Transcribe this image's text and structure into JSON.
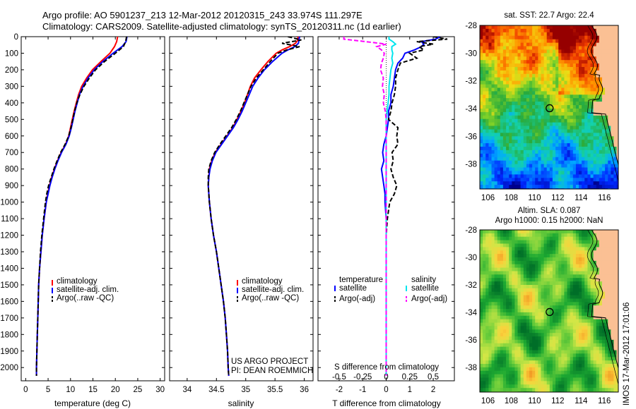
{
  "header": {
    "line1": "Argo profile: AO 5901237_213 12-Mar-2012 20120315_243 33.974S 111.297E",
    "line2": "Climatology: CARS2009. Satellite-adjusted climatology: synTS_20120311.nc (1d earlier)"
  },
  "colors": {
    "climatology": "#ff0000",
    "satellite": "#0000ff",
    "argo": "#000000",
    "sat_salinity": "#00e5ee",
    "argo_salinity_adj": "#ff00ff"
  },
  "chart_data": [
    {
      "type": "line",
      "xlabel": "temperature (deg C)",
      "ylabel": "",
      "xlim": [
        -1,
        31
      ],
      "ylim": [
        2080,
        0
      ],
      "xticks": [
        "0",
        "5",
        "10",
        "15",
        "20",
        "25",
        "30"
      ],
      "yticks": [
        "0",
        "100",
        "200",
        "300",
        "400",
        "500",
        "600",
        "700",
        "800",
        "900",
        "1000",
        "1100",
        "1200",
        "1300",
        "1400",
        "1500",
        "1600",
        "1700",
        "1800",
        "1900",
        "2000"
      ],
      "legend": [
        "climatology",
        "satellite-adj. clim.",
        "Argo(..raw -QC)"
      ],
      "legend_position": "bottom",
      "depth": [
        0,
        30,
        60,
        100,
        150,
        200,
        250,
        300,
        350,
        400,
        450,
        500,
        550,
        600,
        650,
        700,
        750,
        800,
        850,
        900,
        950,
        1000,
        1100,
        1200,
        1300,
        1400,
        1500,
        1600,
        1700,
        1800,
        1900,
        2000,
        2050
      ],
      "series": [
        {
          "name": "climatology",
          "values": [
            20.5,
            20.3,
            19.8,
            18.8,
            16.8,
            14.9,
            13.6,
            12.5,
            11.8,
            11.3,
            10.8,
            10.4,
            10.0,
            9.6,
            8.9,
            7.9,
            7.1,
            6.4,
            5.8,
            5.3,
            4.9,
            4.6,
            4.1,
            3.7,
            3.4,
            3.1,
            2.9,
            2.8,
            2.7,
            2.6,
            2.5,
            2.4,
            2.4
          ]
        },
        {
          "name": "satellite-adj. clim.",
          "values": [
            22.6,
            22.4,
            21.5,
            19.5,
            17.2,
            15.3,
            13.9,
            12.8,
            12.0,
            11.5,
            11.0,
            10.6,
            10.2,
            9.7,
            9.0,
            8.0,
            7.2,
            6.5,
            5.9,
            5.4,
            5.0,
            4.6,
            4.1,
            3.7,
            3.4,
            3.1,
            2.9,
            2.8,
            2.7,
            2.6,
            2.5,
            2.4,
            2.4
          ]
        },
        {
          "name": "Argo(..raw -QC)",
          "values": [
            22.5,
            22.3,
            21.8,
            20.0,
            17.6,
            15.6,
            14.2,
            13.0,
            12.1,
            11.4,
            10.9,
            10.5,
            10.1,
            9.6,
            8.8,
            7.8,
            7.0,
            6.3,
            5.7,
            5.1,
            4.7,
            4.4,
            4.0,
            3.6,
            3.3,
            3.1,
            2.9,
            2.8,
            2.7,
            2.6,
            2.5,
            2.4,
            2.4
          ]
        }
      ]
    },
    {
      "type": "line",
      "xlabel": "salinity",
      "xlim": [
        33.7,
        36.15
      ],
      "ylim": [
        2080,
        0
      ],
      "xticks": [
        "34",
        "34.5",
        "35",
        "35.5",
        "36"
      ],
      "legend": [
        "climatology",
        "satellite-adj. clim.",
        "Argo(..raw -QC)"
      ],
      "legend_position": "bottom",
      "annotation": [
        "US ARGO PROJECT",
        "PI: DEAN ROEMMICH"
      ],
      "depth": [
        0,
        20,
        40,
        60,
        80,
        100,
        150,
        200,
        250,
        300,
        350,
        400,
        450,
        500,
        550,
        600,
        650,
        700,
        750,
        800,
        850,
        900,
        950,
        1000,
        1100,
        1200,
        1300,
        1400,
        1500,
        1600,
        1700,
        1800,
        1900,
        2000,
        2050
      ],
      "series": [
        {
          "name": "climatology",
          "values": [
            35.89,
            35.89,
            35.85,
            35.75,
            35.62,
            35.52,
            35.38,
            35.26,
            35.15,
            35.08,
            35.03,
            34.98,
            34.92,
            34.85,
            34.78,
            34.68,
            34.58,
            34.48,
            34.42,
            34.38,
            34.37,
            34.36,
            34.37,
            34.38,
            34.41,
            34.45,
            34.5,
            34.54,
            34.58,
            34.62,
            34.65,
            34.67,
            34.69,
            34.7,
            34.71
          ]
        },
        {
          "name": "satellite-adj. clim.",
          "values": [
            35.92,
            35.91,
            35.9,
            35.84,
            35.72,
            35.62,
            35.46,
            35.32,
            35.21,
            35.12,
            35.06,
            35.0,
            34.94,
            34.87,
            34.79,
            34.69,
            34.59,
            34.49,
            34.43,
            34.39,
            34.37,
            34.36,
            34.37,
            34.38,
            34.41,
            34.45,
            34.5,
            34.54,
            34.58,
            34.62,
            34.65,
            34.67,
            34.69,
            34.7,
            34.71
          ]
        },
        {
          "name": "Argo(..raw -QC)",
          "values": [
            35.72,
            35.95,
            35.62,
            35.92,
            35.7,
            35.55,
            35.42,
            35.3,
            35.18,
            35.09,
            35.03,
            34.97,
            34.91,
            34.84,
            34.76,
            34.66,
            34.56,
            34.47,
            34.41,
            34.37,
            34.36,
            34.36,
            34.37,
            34.38,
            34.41,
            34.45,
            34.5,
            34.54,
            34.58,
            34.62,
            34.65,
            34.67,
            34.69,
            34.7,
            34.71
          ]
        }
      ]
    },
    {
      "type": "line",
      "xlabel": "T difference from climatology",
      "xlabel_top": "S difference from climatology",
      "xlim": [
        -2.9,
        2.9
      ],
      "ylim": [
        2080,
        0
      ],
      "xticks": [
        "-2",
        "-1",
        "0",
        "1",
        "2"
      ],
      "xticks_top": [
        "-0.5",
        "-0.25",
        "0",
        "0.25",
        "0.5"
      ],
      "legend": [
        "temperature",
        "satellite",
        "Argo(-adj)",
        "salinity",
        "satellite",
        "Argo(-adj)"
      ],
      "legend_position": "bottom",
      "depth": [
        0,
        15,
        30,
        45,
        60,
        80,
        100,
        130,
        160,
        200,
        250,
        300,
        350,
        400,
        450,
        500,
        550,
        600,
        650,
        700,
        750,
        800,
        850,
        900,
        950,
        1000,
        1100,
        1200,
        1400,
        1600,
        1800,
        2000,
        2050
      ],
      "series": [
        {
          "name": "temperature satellite",
          "values": [
            2.3,
            2.1,
            1.5,
            1.6,
            1.5,
            1.2,
            0.8,
            0.7,
            0.5,
            0.4,
            0.35,
            0.3,
            0.2,
            0.2,
            0.1,
            0.1,
            0.05,
            0.0,
            -0.1,
            -0.15,
            -0.1,
            -0.2,
            -0.15,
            -0.1,
            -0.05,
            -0.05,
            0.0,
            0.0,
            0.0,
            0.0,
            0.0,
            0.0,
            0.0
          ]
        },
        {
          "name": "temperature Argo(-adj)",
          "values": [
            2.0,
            2.6,
            1.3,
            2.0,
            1.4,
            1.6,
            1.0,
            1.3,
            0.6,
            0.5,
            0.4,
            0.4,
            0.35,
            0.25,
            0.2,
            0.1,
            0.5,
            0.45,
            0.5,
            0.25,
            0.3,
            0.2,
            0.3,
            0.45,
            0.35,
            0.15,
            0.05,
            0.0,
            0.0,
            0.0,
            0.0,
            0.0,
            0.0
          ]
        },
        {
          "name": "salinity satellite",
          "values": [
            0.03,
            0.03,
            0.07,
            0.1,
            0.06,
            0.06,
            0.07,
            0.06,
            0.07,
            0.05,
            0.04,
            0.03,
            0.03,
            0.02,
            0.01,
            0.0,
            0.0,
            0.0,
            0.0,
            0.0,
            0.0,
            0.0,
            0.0,
            0.0,
            0.0,
            0.0,
            0.0,
            0.0,
            0.0,
            0.0,
            0.0,
            0.0,
            0.0
          ]
        },
        {
          "name": "salinity Argo(-adj)",
          "values": [
            -0.45,
            -0.45,
            -0.22,
            0.0,
            -0.1,
            -0.05,
            -0.02,
            -0.03,
            -0.05,
            -0.06,
            -0.03,
            -0.04,
            -0.02,
            -0.03,
            -0.01,
            0.0,
            0.0,
            0.0,
            0.0,
            0.0,
            0.0,
            0.0,
            0.0,
            0.0,
            0.0,
            0.0,
            0.0,
            0.0,
            0.0,
            0.0,
            0.0,
            0.0,
            0.0
          ]
        }
      ]
    },
    {
      "type": "heatmap",
      "title": "sat. SST: 22.7  Argo: 22.4",
      "xlim": [
        105.3,
        117.2
      ],
      "ylim": [
        -39.8,
        -28.0
      ],
      "xticks": [
        "106",
        "108",
        "110",
        "112",
        "114",
        "116"
      ],
      "yticks": [
        "-28",
        "-30",
        "-32",
        "-34",
        "-36",
        "-38"
      ],
      "argo_position": [
        111.297,
        -33.974
      ]
    },
    {
      "type": "heatmap",
      "title": "Altim. SLA: 0.087",
      "subtitle": "Argo h1000: 0.15 h2000: NaN",
      "xlim": [
        105.3,
        117.2
      ],
      "ylim": [
        -39.8,
        -28.0
      ],
      "xticks": [
        "106",
        "108",
        "110",
        "112",
        "114",
        "116"
      ],
      "yticks": [
        "-28",
        "-30",
        "-32",
        "-34",
        "-36",
        "-38"
      ],
      "argo_position": [
        111.297,
        -33.974
      ]
    }
  ],
  "watermark": "IMOS 17-Mar-2012 17:01:06"
}
